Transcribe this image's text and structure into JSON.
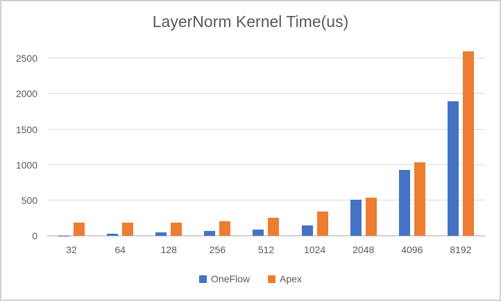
{
  "title": "LayerNorm Kernel Time(us)",
  "chart_data": {
    "type": "bar",
    "title": "LayerNorm Kernel Time(us)",
    "categories": [
      "32",
      "64",
      "128",
      "256",
      "512",
      "1024",
      "2048",
      "4096",
      "8192"
    ],
    "series": [
      {
        "name": "OneFlow",
        "color": "#4472C4",
        "values": [
          5,
          30,
          45,
          70,
          90,
          145,
          505,
          925,
          1900
        ]
      },
      {
        "name": "Apex",
        "color": "#ED7D31",
        "values": [
          190,
          190,
          190,
          205,
          250,
          340,
          540,
          1040,
          2600
        ]
      }
    ],
    "xlabel": "",
    "ylabel": "",
    "yticks": [
      0,
      500,
      1000,
      1500,
      2000,
      2500
    ],
    "ylim": [
      0,
      2650
    ],
    "grid": true,
    "legend_position": "bottom"
  },
  "colors": {
    "grid": "#D9D9D9",
    "baseline": "#D2D2D2",
    "text": "#595959",
    "frame_border": "#D0D0D0",
    "background": "#FFFFFF"
  }
}
